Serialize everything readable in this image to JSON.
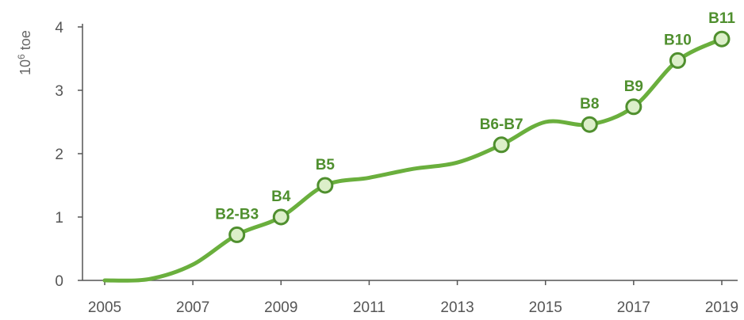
{
  "chart_data": {
    "type": "line",
    "ylabel_base": "10",
    "ylabel_exp": "6",
    "ylabel_unit": " toe",
    "x_ticks": [
      "2005",
      "2007",
      "2009",
      "2011",
      "2013",
      "2015",
      "2017",
      "2019"
    ],
    "y_ticks": [
      "0",
      "1",
      "2",
      "3",
      "4"
    ],
    "xlim": [
      2005,
      2019
    ],
    "ylim": [
      0,
      4
    ],
    "grid": false,
    "line_color": "#6aaf3d",
    "marker_fill": "#dcefc9",
    "marker_stroke": "#4f8f2e",
    "label_color": "#4f8f2e",
    "axis_color": "#555555",
    "curve": [
      {
        "x": 2005.0,
        "y": 0.0
      },
      {
        "x": 2006.0,
        "y": 0.02
      },
      {
        "x": 2007.0,
        "y": 0.25
      },
      {
        "x": 2008.0,
        "y": 0.72
      },
      {
        "x": 2009.0,
        "y": 1.0
      },
      {
        "x": 2010.0,
        "y": 1.5
      },
      {
        "x": 2011.0,
        "y": 1.62
      },
      {
        "x": 2012.0,
        "y": 1.76
      },
      {
        "x": 2013.0,
        "y": 1.86
      },
      {
        "x": 2014.0,
        "y": 2.14
      },
      {
        "x": 2015.0,
        "y": 2.5
      },
      {
        "x": 2016.0,
        "y": 2.46
      },
      {
        "x": 2017.0,
        "y": 2.74
      },
      {
        "x": 2018.0,
        "y": 3.47
      },
      {
        "x": 2019.0,
        "y": 3.81
      }
    ],
    "points": [
      {
        "x": 2008,
        "y": 0.72,
        "label": "B2-B3"
      },
      {
        "x": 2009,
        "y": 1.0,
        "label": "B4"
      },
      {
        "x": 2010,
        "y": 1.5,
        "label": "B5"
      },
      {
        "x": 2014,
        "y": 2.14,
        "label": "B6-B7"
      },
      {
        "x": 2016,
        "y": 2.46,
        "label": "B8"
      },
      {
        "x": 2017,
        "y": 2.74,
        "label": "B9"
      },
      {
        "x": 2018,
        "y": 3.47,
        "label": "B10"
      },
      {
        "x": 2019,
        "y": 3.81,
        "label": "B11"
      }
    ]
  }
}
